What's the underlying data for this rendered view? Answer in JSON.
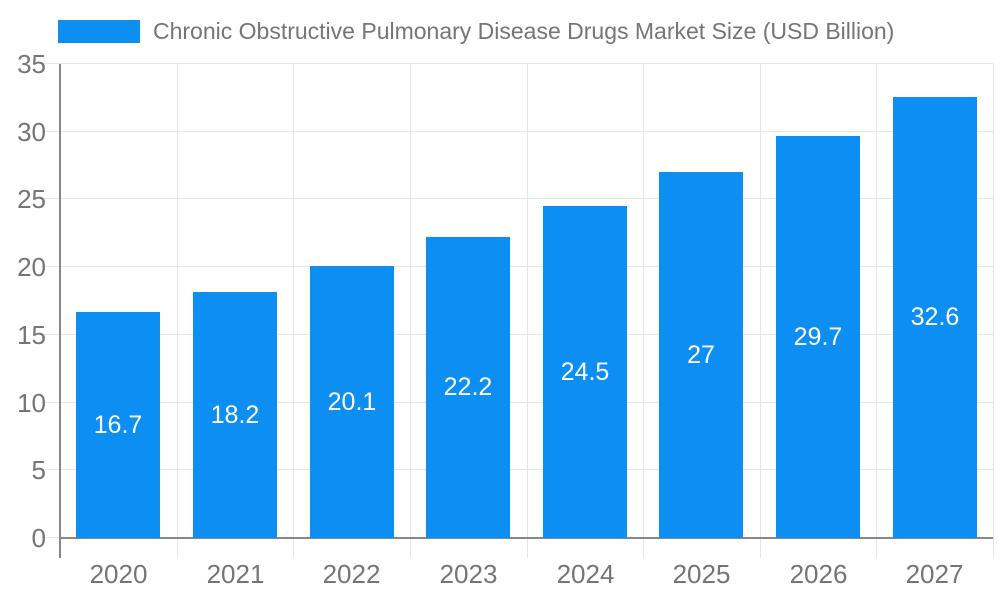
{
  "chart_data": {
    "type": "bar",
    "title": "Chronic Obstructive Pulmonary Disease Drugs Market Size (USD Billion)",
    "legend": {
      "position": "top",
      "items": [
        {
          "label": "Chronic Obstructive Pulmonary Disease Drugs Market Size (USD Billion)",
          "color": "#0d8ef2"
        }
      ]
    },
    "categories": [
      "2020",
      "2021",
      "2022",
      "2023",
      "2024",
      "2025",
      "2026",
      "2027"
    ],
    "values": [
      16.7,
      18.2,
      20.1,
      22.2,
      24.5,
      27,
      29.7,
      32.6
    ],
    "value_labels": [
      "16.7",
      "18.2",
      "20.1",
      "22.2",
      "24.5",
      "27",
      "29.7",
      "32.6"
    ],
    "xlabel": "",
    "ylabel": "",
    "ylim": [
      0,
      35
    ],
    "yticks": [
      0,
      5,
      10,
      15,
      20,
      25,
      30,
      35
    ],
    "grid": true,
    "bar_color": "#0d8ef2",
    "value_label_color": "#ffffff",
    "axis_text_color": "#757575",
    "grid_color": "#e6e6e6",
    "axis_line_color": "#888888",
    "background_color": "#ffffff"
  }
}
